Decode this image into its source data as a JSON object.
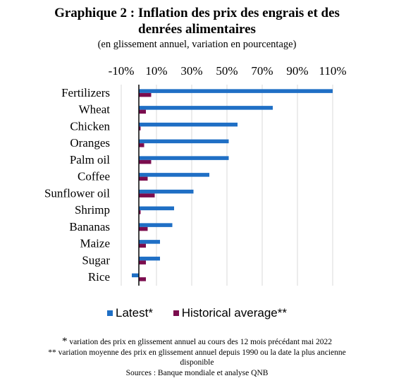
{
  "chart_data": {
    "type": "bar",
    "orientation": "horizontal",
    "title": "Graphique 2 : Inflation des prix des engrais et des denrées alimentaires",
    "title_line1": "Graphique 2 : Inflation des prix des engrais et des",
    "title_line2": "denrées alimentaires",
    "subtitle": "(en glissement annuel, variation en pourcentage)",
    "categories": [
      "Fertilizers",
      "Wheat",
      "Chicken",
      "Oranges",
      "Palm oil",
      "Coffee",
      "Sunflower oil",
      "Shrimp",
      "Bananas",
      "Maize",
      "Sugar",
      "Rice"
    ],
    "series": [
      {
        "name": "Latest*",
        "color": "#1f6fc5",
        "values": [
          110,
          76,
          56,
          51,
          51,
          40,
          31,
          20,
          19,
          12,
          12,
          -4
        ]
      },
      {
        "name": "Historical average**",
        "color": "#7b0d4e",
        "values": [
          7,
          4,
          1,
          3,
          7,
          5,
          9,
          1,
          5,
          4,
          4,
          4
        ]
      }
    ],
    "x_ticks": [
      "-10%",
      "10%",
      "30%",
      "50%",
      "70%",
      "90%",
      "110%"
    ],
    "x_tick_values": [
      -10,
      10,
      30,
      50,
      70,
      90,
      110
    ],
    "xlim": [
      -10,
      110
    ],
    "grid": true,
    "axis_position": "top",
    "legend_position": "bottom"
  },
  "notes": {
    "star_symbol": "*",
    "note1": "variation des prix en glissement annuel au cours des 12 mois précédant mai 2022",
    "note2": "** variation moyenne des prix en glissement annuel depuis 1990 ou la date la plus ancienne",
    "note3": "disponible",
    "source": "Sources : Banque mondiale et analyse QNB"
  }
}
